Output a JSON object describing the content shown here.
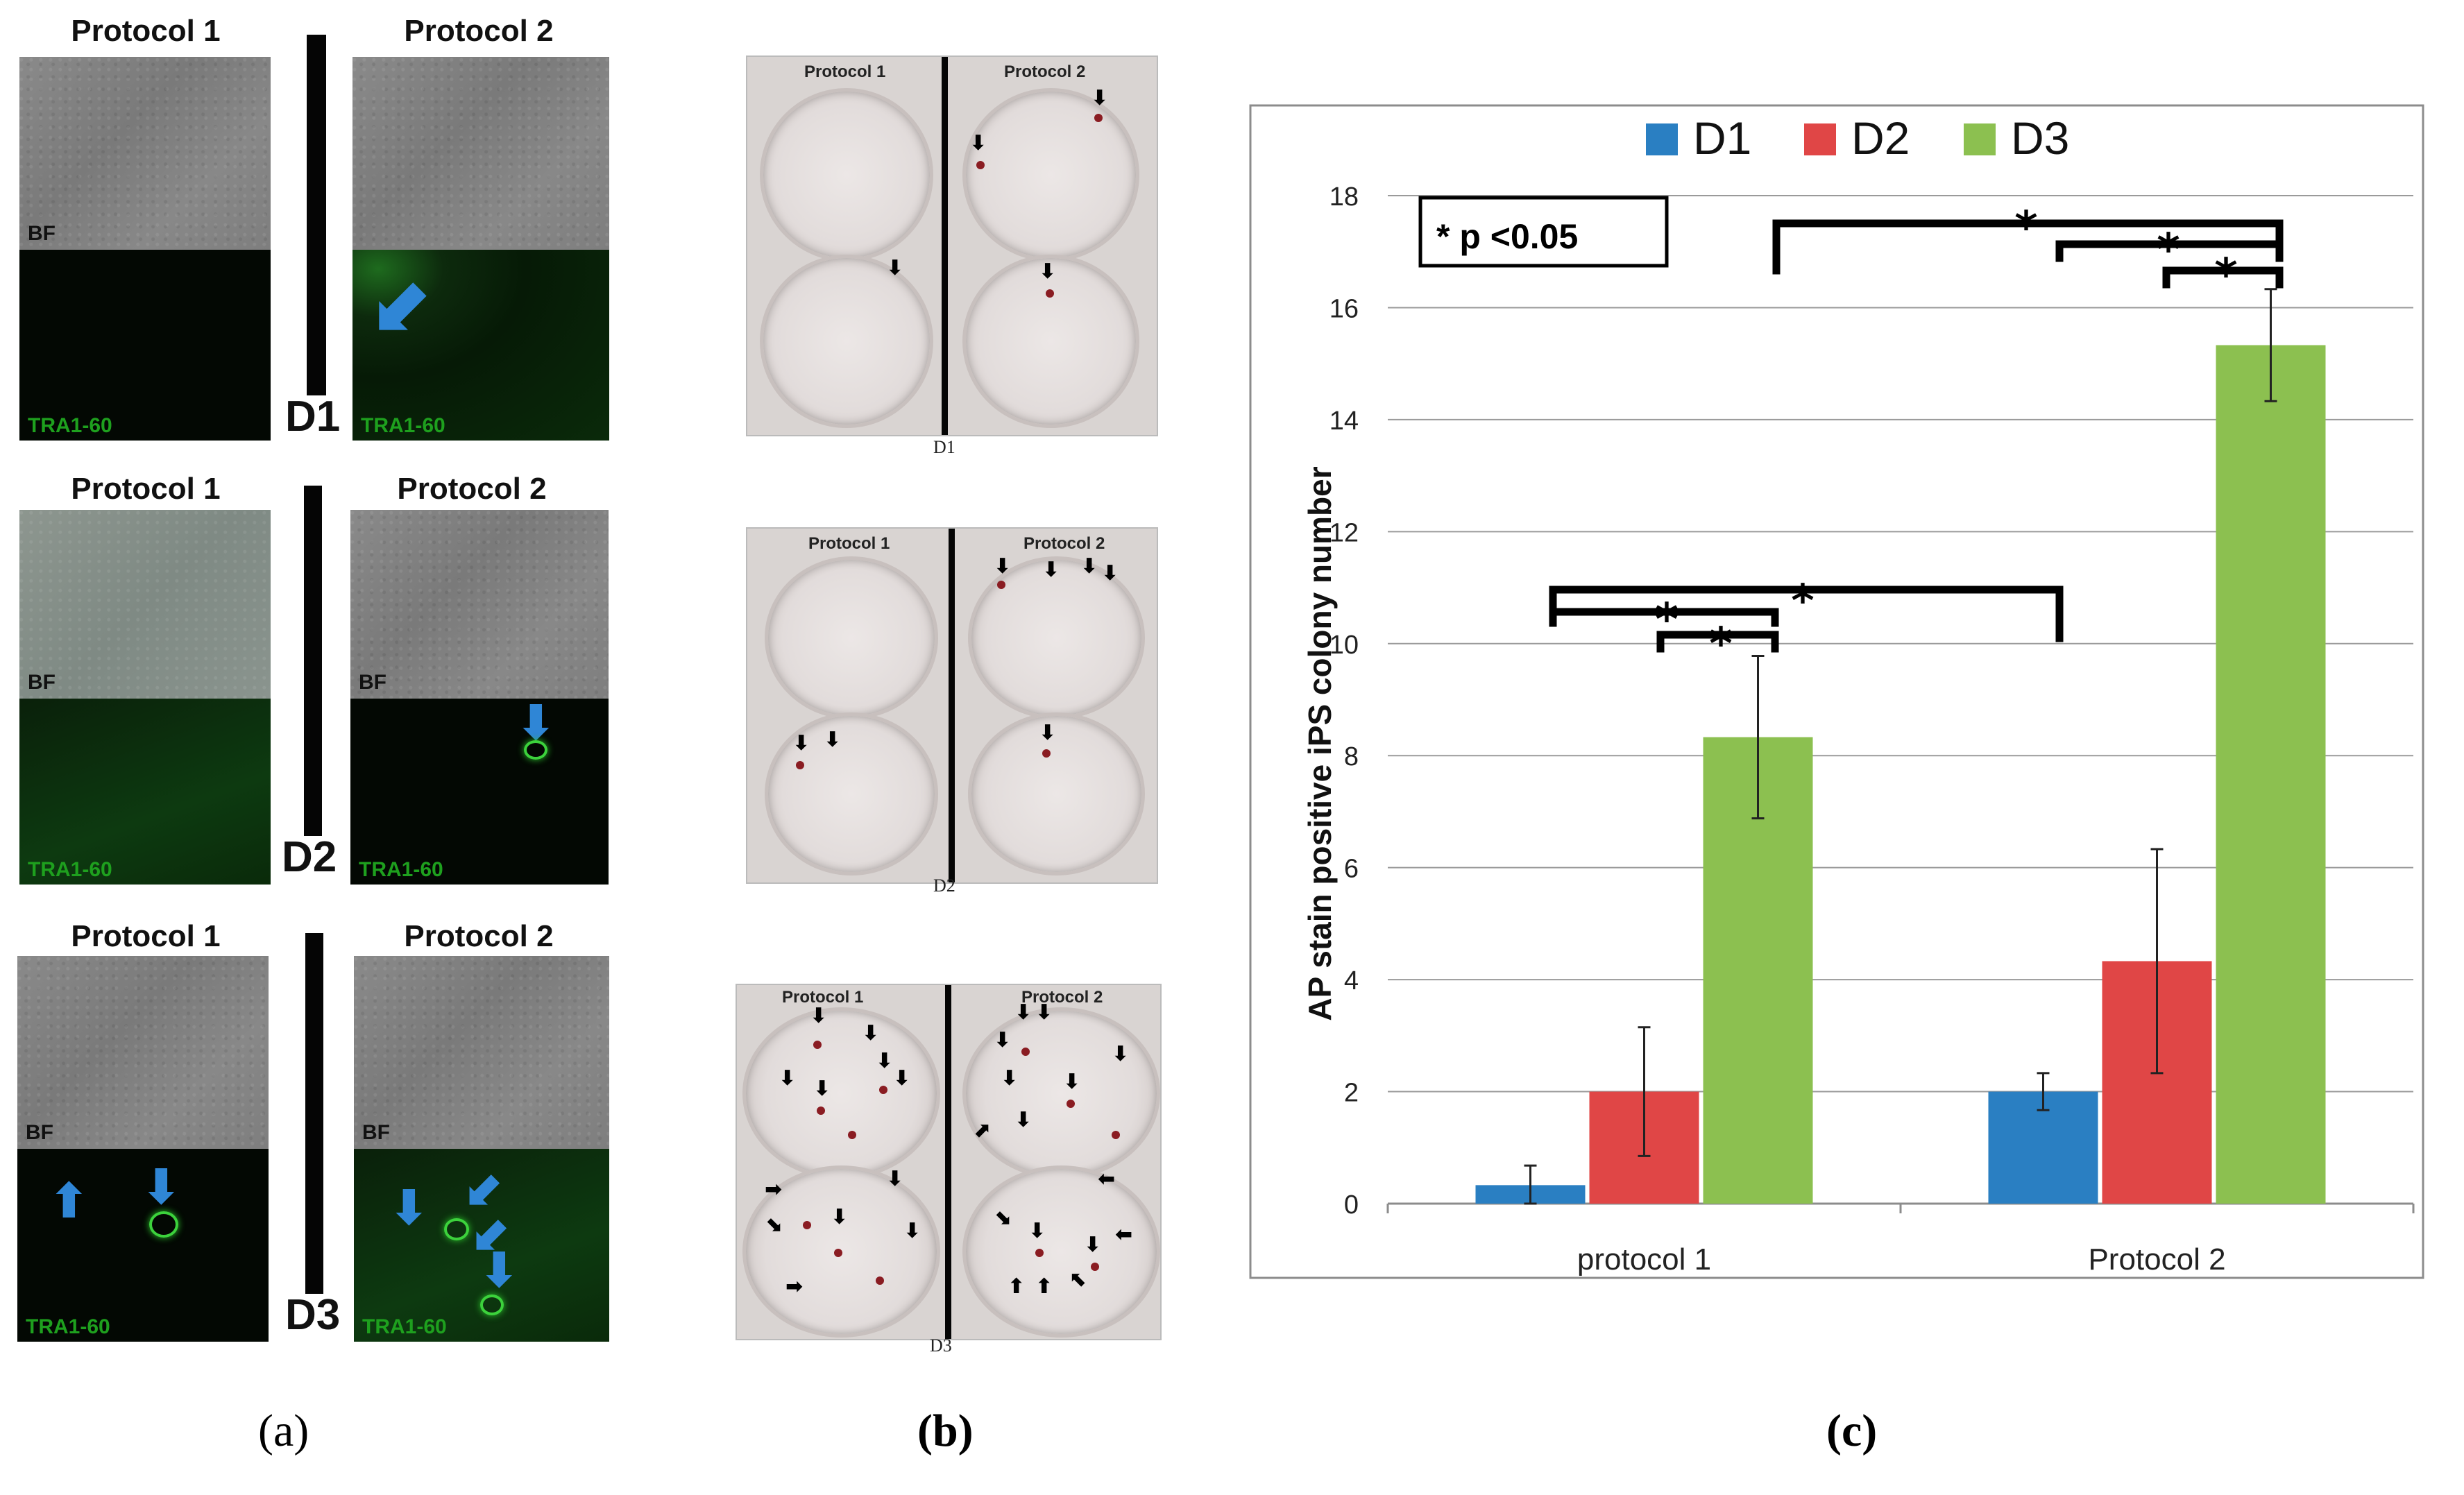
{
  "panel_a": {
    "rows": [
      {
        "left_title": "Protocol 1",
        "right_title": "Protocol 2",
        "day": "D1"
      },
      {
        "left_title": "Protocol 1",
        "right_title": "Protocol 2",
        "day": "D2"
      },
      {
        "left_title": "Protocol 1",
        "right_title": "Protocol 2",
        "day": "D3"
      }
    ],
    "bf_label": "BF",
    "tra_label": "TRA1-60",
    "caption": "(a)"
  },
  "panel_b": {
    "plates": [
      {
        "left_title": "Protocol 1",
        "right_title": "Protocol 2",
        "day": "D1"
      },
      {
        "left_title": "Protocol 1",
        "right_title": "Protocol 2",
        "day": "D2"
      },
      {
        "left_title": "Protocol 1",
        "right_title": "Protocol 2",
        "day": "D3"
      }
    ],
    "caption": "(b)"
  },
  "panel_c": {
    "caption": "(c)",
    "significance_note": "* p <0.05",
    "star": "*"
  },
  "colors": {
    "d1": "#2a7fc2",
    "d2": "#e04646",
    "d3": "#8cc050",
    "blue_arrow": "#2f86d6"
  },
  "chart_data": {
    "type": "bar",
    "title": "",
    "xlabel": "",
    "ylabel": "AP stain positive iPS colony number",
    "categories": [
      "protocol 1",
      "Protocol 2"
    ],
    "ylim": [
      0,
      18
    ],
    "yticks": [
      0,
      2,
      4,
      6,
      8,
      10,
      12,
      14,
      16,
      18
    ],
    "legend_position": "top",
    "series": [
      {
        "name": "D1",
        "values": [
          0.33,
          2.0
        ],
        "errors": [
          0.35,
          0.33
        ]
      },
      {
        "name": "D2",
        "values": [
          2.0,
          4.33
        ],
        "errors": [
          1.15,
          2.0
        ]
      },
      {
        "name": "D3",
        "values": [
          8.33,
          15.33
        ],
        "errors": [
          1.45,
          1.0
        ]
      }
    ]
  }
}
